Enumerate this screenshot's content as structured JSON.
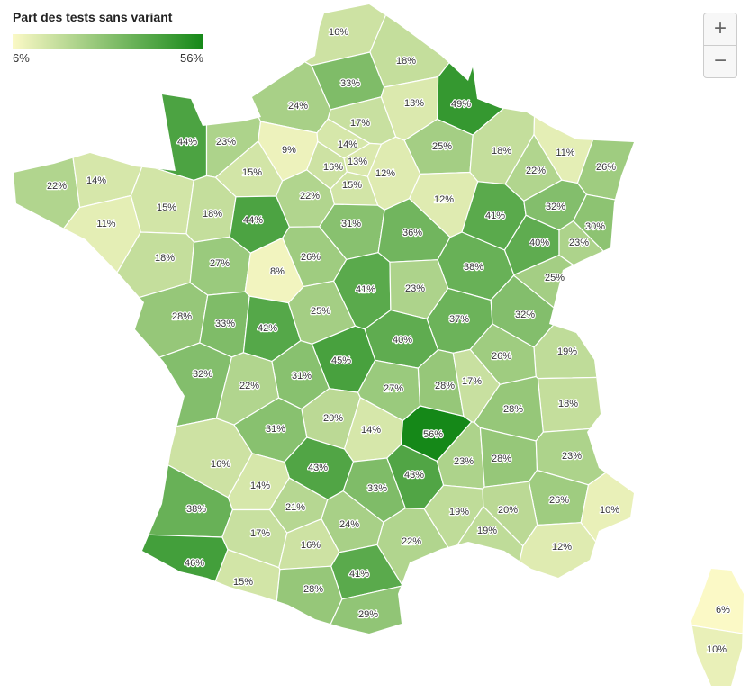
{
  "chart_data": {
    "type": "choropleth",
    "title": "Part des tests sans variant",
    "colorscale": {
      "min": {
        "value": 6,
        "label": "6%"
      },
      "max": {
        "value": 56,
        "label": "56%"
      },
      "colors": [
        "#fbf9c6",
        "#158818"
      ]
    },
    "values": [
      16,
      18,
      33,
      24,
      13,
      49,
      17,
      44,
      23,
      9,
      14,
      25,
      18,
      11,
      16,
      13,
      12,
      22,
      26,
      22,
      14,
      15,
      15,
      22,
      12,
      15,
      18,
      44,
      11,
      41,
      32,
      30,
      31,
      36,
      40,
      23,
      18,
      27,
      8,
      26,
      38,
      41,
      23,
      25,
      28,
      33,
      42,
      25,
      37,
      32,
      40,
      45,
      19,
      26,
      32,
      31,
      22,
      27,
      28,
      17,
      18,
      20,
      14,
      56,
      28,
      31,
      16,
      43,
      43,
      23,
      28,
      23,
      14,
      33,
      26,
      10,
      38,
      21,
      19,
      20,
      24,
      17,
      19,
      16,
      22,
      12,
      46,
      41,
      15,
      28,
      29,
      6,
      10
    ],
    "value_labels": [
      "16%",
      "18%",
      "33%",
      "24%",
      "13%",
      "49%",
      "17%",
      "44%",
      "23%",
      "9%",
      "14%",
      "25%",
      "18%",
      "11%",
      "16%",
      "13%",
      "12%",
      "22%",
      "26%",
      "22%",
      "14%",
      "15%",
      "15%",
      "22%",
      "12%",
      "15%",
      "18%",
      "44%",
      "11%",
      "41%",
      "32%",
      "30%",
      "31%",
      "36%",
      "40%",
      "23%",
      "18%",
      "27%",
      "8%",
      "26%",
      "38%",
      "41%",
      "23%",
      "25%",
      "28%",
      "33%",
      "42%",
      "25%",
      "37%",
      "32%",
      "40%",
      "45%",
      "19%",
      "26%",
      "32%",
      "31%",
      "22%",
      "27%",
      "28%",
      "17%",
      "18%",
      "20%",
      "14%",
      "56%",
      "28%",
      "31%",
      "16%",
      "43%",
      "43%",
      "23%",
      "28%",
      "23%",
      "14%",
      "33%",
      "26%",
      "10%",
      "38%",
      "21%",
      "19%",
      "20%",
      "24%",
      "17%",
      "19%",
      "16%",
      "22%",
      "12%",
      "46%",
      "41%",
      "15%",
      "28%",
      "29%",
      "6%",
      "10%"
    ]
  },
  "controls": {
    "zoom_in": "+",
    "zoom_out": "−"
  }
}
